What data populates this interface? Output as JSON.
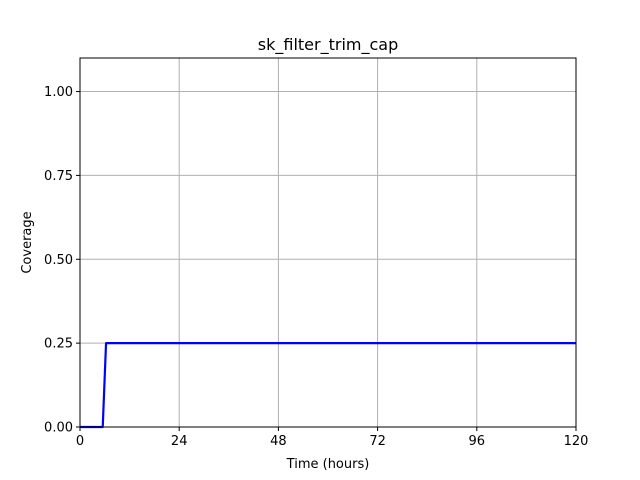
{
  "chart_data": {
    "type": "line",
    "title": "sk_filter_trim_cap",
    "xlabel": "Time (hours)",
    "ylabel": "Coverage",
    "xlim": [
      0,
      120
    ],
    "ylim": [
      0,
      1.1
    ],
    "x_ticks": [
      0,
      24,
      48,
      72,
      96,
      120
    ],
    "y_ticks": [
      0.0,
      0.25,
      0.5,
      0.75,
      1.0
    ],
    "x_tick_labels": [
      "0",
      "24",
      "48",
      "72",
      "96",
      "120"
    ],
    "y_tick_labels": [
      "0.00",
      "0.25",
      "0.50",
      "0.75",
      "1.00"
    ],
    "grid": true,
    "series": [
      {
        "color": "#0000ff",
        "x": [
          0,
          5.5,
          6.3,
          120
        ],
        "y": [
          0,
          0,
          0.25,
          0.25
        ]
      }
    ]
  }
}
